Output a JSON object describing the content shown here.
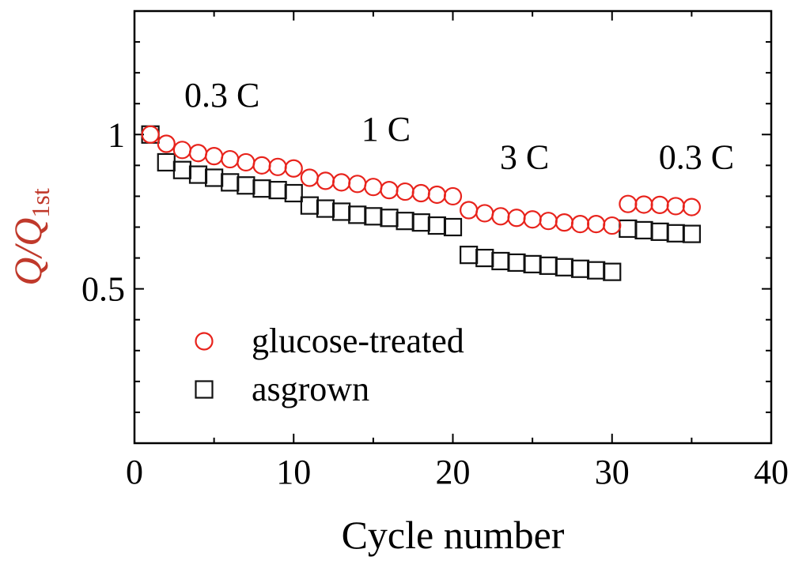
{
  "chart_data": {
    "type": "scatter",
    "xlabel": "Cycle number",
    "ylabel": {
      "symbol": "Q/Q",
      "subscript": "1st"
    },
    "xlim": [
      0,
      40
    ],
    "ylim": [
      0,
      1.4
    ],
    "x_ticks": [
      {
        "value": 0,
        "label": "0"
      },
      {
        "value": 10,
        "label": "10"
      },
      {
        "value": 20,
        "label": "20"
      },
      {
        "value": 30,
        "label": "30"
      },
      {
        "value": 40,
        "label": "40"
      }
    ],
    "y_ticks": [
      {
        "value": 0.5,
        "label": "0.5"
      },
      {
        "value": 1.0,
        "label": "1"
      }
    ],
    "annotations": [
      {
        "text": "0.3 C",
        "x": 5.5,
        "y": 1.09
      },
      {
        "text": "1 C",
        "x": 15.8,
        "y": 0.98
      },
      {
        "text": "3 C",
        "x": 24.5,
        "y": 0.89
      },
      {
        "text": "0.3 C",
        "x": 35.3,
        "y": 0.89
      }
    ],
    "legend": {
      "position": "bottom-left",
      "entries": [
        {
          "name": "glucose-treated",
          "marker": "circle",
          "color": "#e8231c"
        },
        {
          "name": "asgrown",
          "marker": "square",
          "color": "#111111"
        }
      ]
    },
    "series": [
      {
        "name": "glucose-treated",
        "marker": "circle",
        "color": "#e8231c",
        "x": [
          1,
          2,
          3,
          4,
          5,
          6,
          7,
          8,
          9,
          10,
          11,
          12,
          13,
          14,
          15,
          16,
          17,
          18,
          19,
          20,
          21,
          22,
          23,
          24,
          25,
          26,
          27,
          28,
          29,
          30,
          31,
          32,
          33,
          34,
          35
        ],
        "y": [
          1.0,
          0.97,
          0.95,
          0.94,
          0.93,
          0.92,
          0.91,
          0.9,
          0.895,
          0.89,
          0.86,
          0.85,
          0.845,
          0.84,
          0.83,
          0.82,
          0.815,
          0.81,
          0.805,
          0.8,
          0.755,
          0.745,
          0.735,
          0.73,
          0.725,
          0.72,
          0.715,
          0.71,
          0.71,
          0.705,
          0.775,
          0.773,
          0.772,
          0.768,
          0.765
        ]
      },
      {
        "name": "asgrown",
        "marker": "square",
        "color": "#111111",
        "x": [
          1,
          2,
          3,
          4,
          5,
          6,
          7,
          8,
          9,
          10,
          11,
          12,
          13,
          14,
          15,
          16,
          17,
          18,
          19,
          20,
          21,
          22,
          23,
          24,
          25,
          26,
          27,
          28,
          29,
          30,
          31,
          32,
          33,
          34,
          35
        ],
        "y": [
          1.0,
          0.91,
          0.885,
          0.87,
          0.86,
          0.845,
          0.835,
          0.825,
          0.82,
          0.81,
          0.77,
          0.76,
          0.75,
          0.74,
          0.735,
          0.73,
          0.72,
          0.715,
          0.705,
          0.7,
          0.61,
          0.6,
          0.59,
          0.585,
          0.58,
          0.575,
          0.57,
          0.565,
          0.56,
          0.555,
          0.695,
          0.69,
          0.685,
          0.68,
          0.678
        ]
      }
    ]
  }
}
